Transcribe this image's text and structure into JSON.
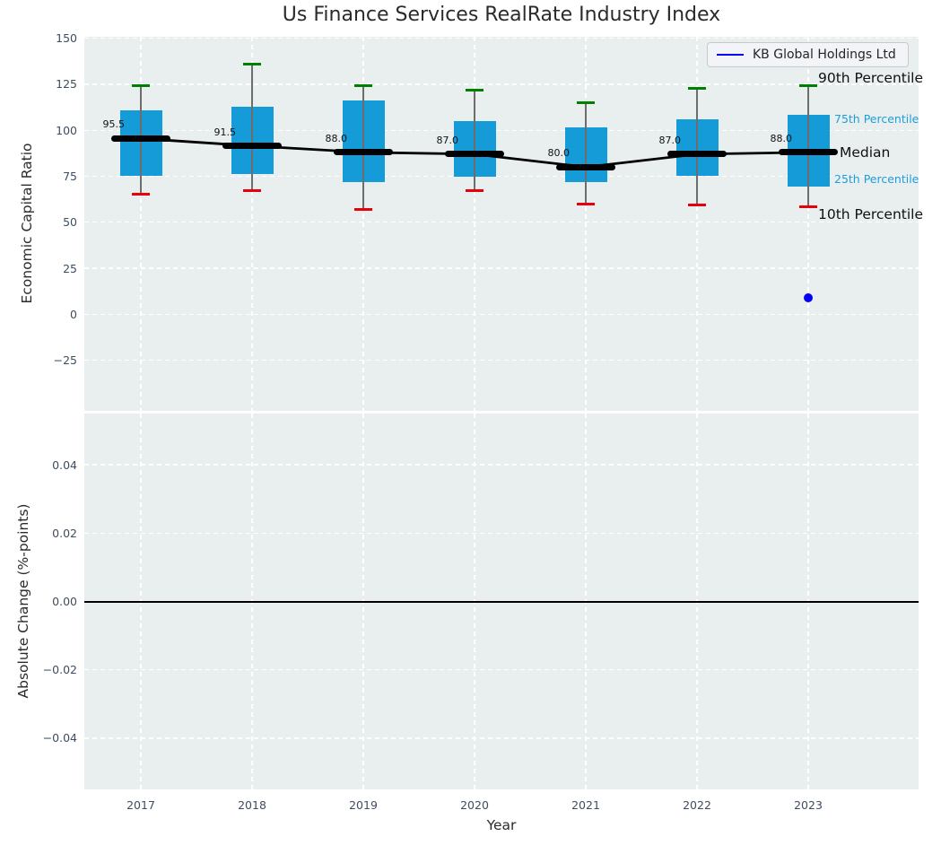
{
  "title": "Us Finance Services RealRate Industry Index",
  "legend": {
    "label": "KB Global Holdings Ltd"
  },
  "colors": {
    "box_fill": "#149bd8",
    "percentile_accent": "#1c9fd9",
    "cap_high": "#008000",
    "cap_low": "#e8000b",
    "median_line": "#000000",
    "whisker": "#6d6d6d",
    "series_blue": "#0202f0",
    "plot_background": "#e9eeef",
    "gridline": "#ffffff",
    "tick_text": "#3e4d5f",
    "title_text": "#2b2b2b",
    "zero_line": "#000000"
  },
  "chart_data": [
    {
      "type": "boxplot",
      "ylabel": "Economic Capital Ratio",
      "ylim": [
        -52.5,
        150.8
      ],
      "grid": true,
      "legend_position": "upper right",
      "yticks": [
        {
          "v": 150,
          "label": "150"
        },
        {
          "v": 125,
          "label": "125"
        },
        {
          "v": 100,
          "label": "100"
        },
        {
          "v": 75,
          "label": "75"
        },
        {
          "v": 50,
          "label": "50"
        },
        {
          "v": 25,
          "label": "25"
        },
        {
          "v": 0,
          "label": "0"
        },
        {
          "v": -25,
          "label": "−25"
        }
      ],
      "categories": [
        "2017",
        "2018",
        "2019",
        "2020",
        "2021",
        "2022",
        "2023"
      ],
      "boxes": [
        {
          "year": "2017",
          "p90": 124.0,
          "p75": 111.0,
          "median": 95.5,
          "p25": 75.0,
          "p10": 65.0,
          "annotation": "95.5"
        },
        {
          "year": "2018",
          "p90": 136.0,
          "p75": 113.0,
          "median": 91.5,
          "p25": 76.0,
          "p10": 67.0,
          "annotation": "91.5"
        },
        {
          "year": "2019",
          "p90": 124.0,
          "p75": 116.0,
          "median": 88.0,
          "p25": 72.0,
          "p10": 57.0,
          "annotation": "88.0"
        },
        {
          "year": "2020",
          "p90": 122.0,
          "p75": 105.0,
          "median": 87.0,
          "p25": 74.5,
          "p10": 67.0,
          "annotation": "87.0"
        },
        {
          "year": "2021",
          "p90": 115.0,
          "p75": 101.5,
          "median": 80.0,
          "p25": 72.0,
          "p10": 60.0,
          "annotation": "80.0"
        },
        {
          "year": "2022",
          "p90": 123.0,
          "p75": 106.0,
          "median": 87.0,
          "p25": 75.0,
          "p10": 59.5,
          "annotation": "87.0"
        },
        {
          "year": "2023",
          "p90": 124.0,
          "p75": 108.5,
          "median": 88.0,
          "p25": 69.5,
          "p10": 58.5,
          "annotation": "88.0"
        }
      ],
      "percentile_labels": [
        {
          "key": "p90",
          "text": "90th Percentile",
          "emphasis": "large"
        },
        {
          "key": "p75",
          "text": "75th Percentile",
          "emphasis": "small"
        },
        {
          "key": "median",
          "text": "Median",
          "emphasis": "large"
        },
        {
          "key": "p25",
          "text": "25th Percentile",
          "emphasis": "small"
        },
        {
          "key": "p10",
          "text": "10th Percentile",
          "emphasis": "large"
        }
      ],
      "point": {
        "series": "KB Global Holdings Ltd",
        "year": "2023",
        "value": 9
      }
    },
    {
      "type": "line",
      "ylabel": "Absolute Change (%-points)",
      "xlabel": "Year",
      "ylim": [
        -0.055,
        0.055
      ],
      "grid": true,
      "zero_line": 0,
      "yticks": [
        {
          "v": 0.04,
          "label": "0.04"
        },
        {
          "v": 0.02,
          "label": "0.02"
        },
        {
          "v": 0,
          "label": "0.00"
        },
        {
          "v": -0.02,
          "label": "−0.02"
        },
        {
          "v": -0.04,
          "label": "−0.04"
        }
      ],
      "series": []
    }
  ]
}
